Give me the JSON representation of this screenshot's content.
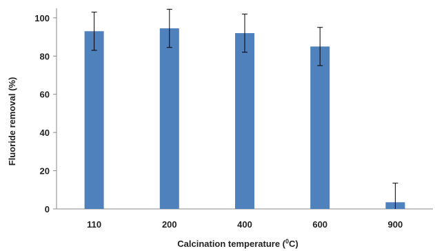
{
  "chart_data": {
    "type": "bar",
    "title": "",
    "xlabel": "Calcination temperature (",
    "xlabel_sup": "0",
    "xlabel_suffix": "C)",
    "ylabel": "Fluoride removal (%)",
    "categories": [
      "110",
      "200",
      "400",
      "600",
      "900"
    ],
    "values": [
      93,
      94.5,
      92,
      85,
      3.5
    ],
    "error": [
      10,
      10,
      10,
      10,
      10
    ],
    "ylim": [
      0,
      105
    ],
    "yticks": [
      0,
      20,
      40,
      60,
      80,
      100
    ],
    "grid": false,
    "legend": "none",
    "bar_color": "#4f81bd"
  }
}
